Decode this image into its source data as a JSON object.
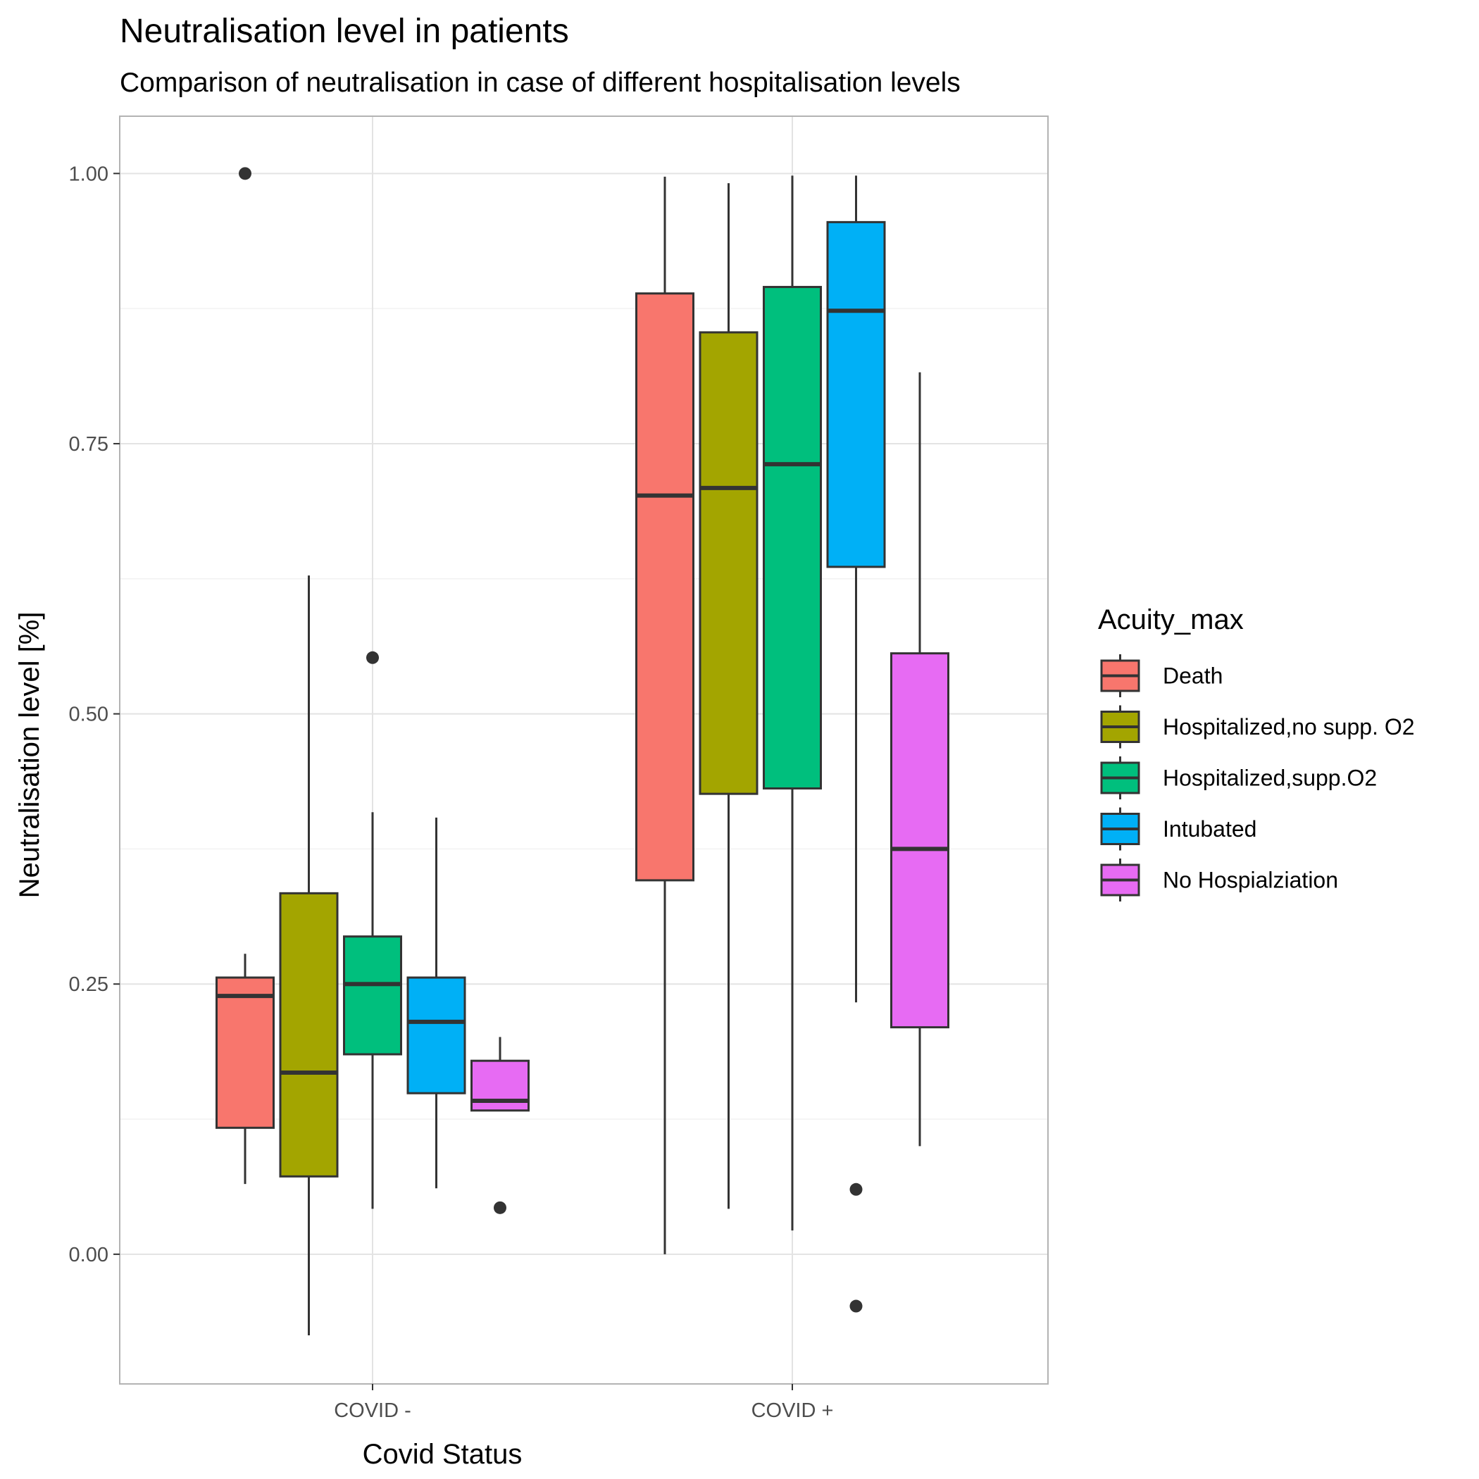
{
  "chart_data": {
    "type": "box",
    "title": "Neutralisation level in patients",
    "subtitle": "Comparison of neutralisation in case of different hospitalisation levels",
    "xlabel": "Covid Status",
    "ylabel": "Neutralisation level [%]",
    "ylim": [
      -0.12,
      1.053
    ],
    "yticks": [
      "0.00",
      "0.25",
      "0.50",
      "0.75",
      "1.00"
    ],
    "ytick_values": [
      0.0,
      0.25,
      0.5,
      0.75,
      1.0
    ],
    "categories": [
      "COVID -",
      "COVID +"
    ],
    "grid": true,
    "legend": {
      "title": "Acuity_max",
      "position": "right"
    },
    "series": [
      {
        "name": "Death",
        "color": "#F8766D",
        "boxes": [
          {
            "category": "COVID -",
            "whisker_low": 0.065,
            "q1": 0.117,
            "median": 0.239,
            "q3": 0.256,
            "whisker_high": 0.278,
            "outliers": [
              1.0
            ]
          },
          {
            "category": "COVID +",
            "whisker_low": 0.0,
            "q1": 0.346,
            "median": 0.702,
            "q3": 0.889,
            "whisker_high": 0.997,
            "outliers": []
          }
        ]
      },
      {
        "name": "Hospitalized,no supp. O2",
        "color": "#A3A500",
        "boxes": [
          {
            "category": "COVID -",
            "whisker_low": -0.075,
            "q1": 0.072,
            "median": 0.168,
            "q3": 0.334,
            "whisker_high": 0.628,
            "outliers": []
          },
          {
            "category": "COVID +",
            "whisker_low": 0.042,
            "q1": 0.426,
            "median": 0.709,
            "q3": 0.853,
            "whisker_high": 0.991,
            "outliers": []
          }
        ]
      },
      {
        "name": "Hospitalized,supp.O2",
        "color": "#00BF7D",
        "boxes": [
          {
            "category": "COVID -",
            "whisker_low": 0.042,
            "q1": 0.185,
            "median": 0.25,
            "q3": 0.294,
            "whisker_high": 0.409,
            "outliers": [
              0.552
            ]
          },
          {
            "category": "COVID +",
            "whisker_low": 0.022,
            "q1": 0.431,
            "median": 0.731,
            "q3": 0.895,
            "whisker_high": 0.998,
            "outliers": []
          }
        ]
      },
      {
        "name": "Intubated",
        "color": "#00B0F6",
        "boxes": [
          {
            "category": "COVID -",
            "whisker_low": 0.061,
            "q1": 0.149,
            "median": 0.215,
            "q3": 0.256,
            "whisker_high": 0.404,
            "outliers": []
          },
          {
            "category": "COVID +",
            "whisker_low": 0.233,
            "q1": 0.636,
            "median": 0.873,
            "q3": 0.955,
            "whisker_high": 0.998,
            "outliers": [
              0.06,
              -0.048
            ]
          }
        ]
      },
      {
        "name": "No Hospialziation",
        "color": "#E76BF3",
        "boxes": [
          {
            "category": "COVID -",
            "whisker_low": 0.133,
            "q1": 0.133,
            "median": 0.142,
            "q3": 0.179,
            "whisker_high": 0.201,
            "outliers": [
              0.043
            ]
          },
          {
            "category": "COVID +",
            "whisker_low": 0.1,
            "q1": 0.21,
            "median": 0.375,
            "q3": 0.556,
            "whisker_high": 0.816,
            "outliers": []
          }
        ]
      }
    ]
  }
}
